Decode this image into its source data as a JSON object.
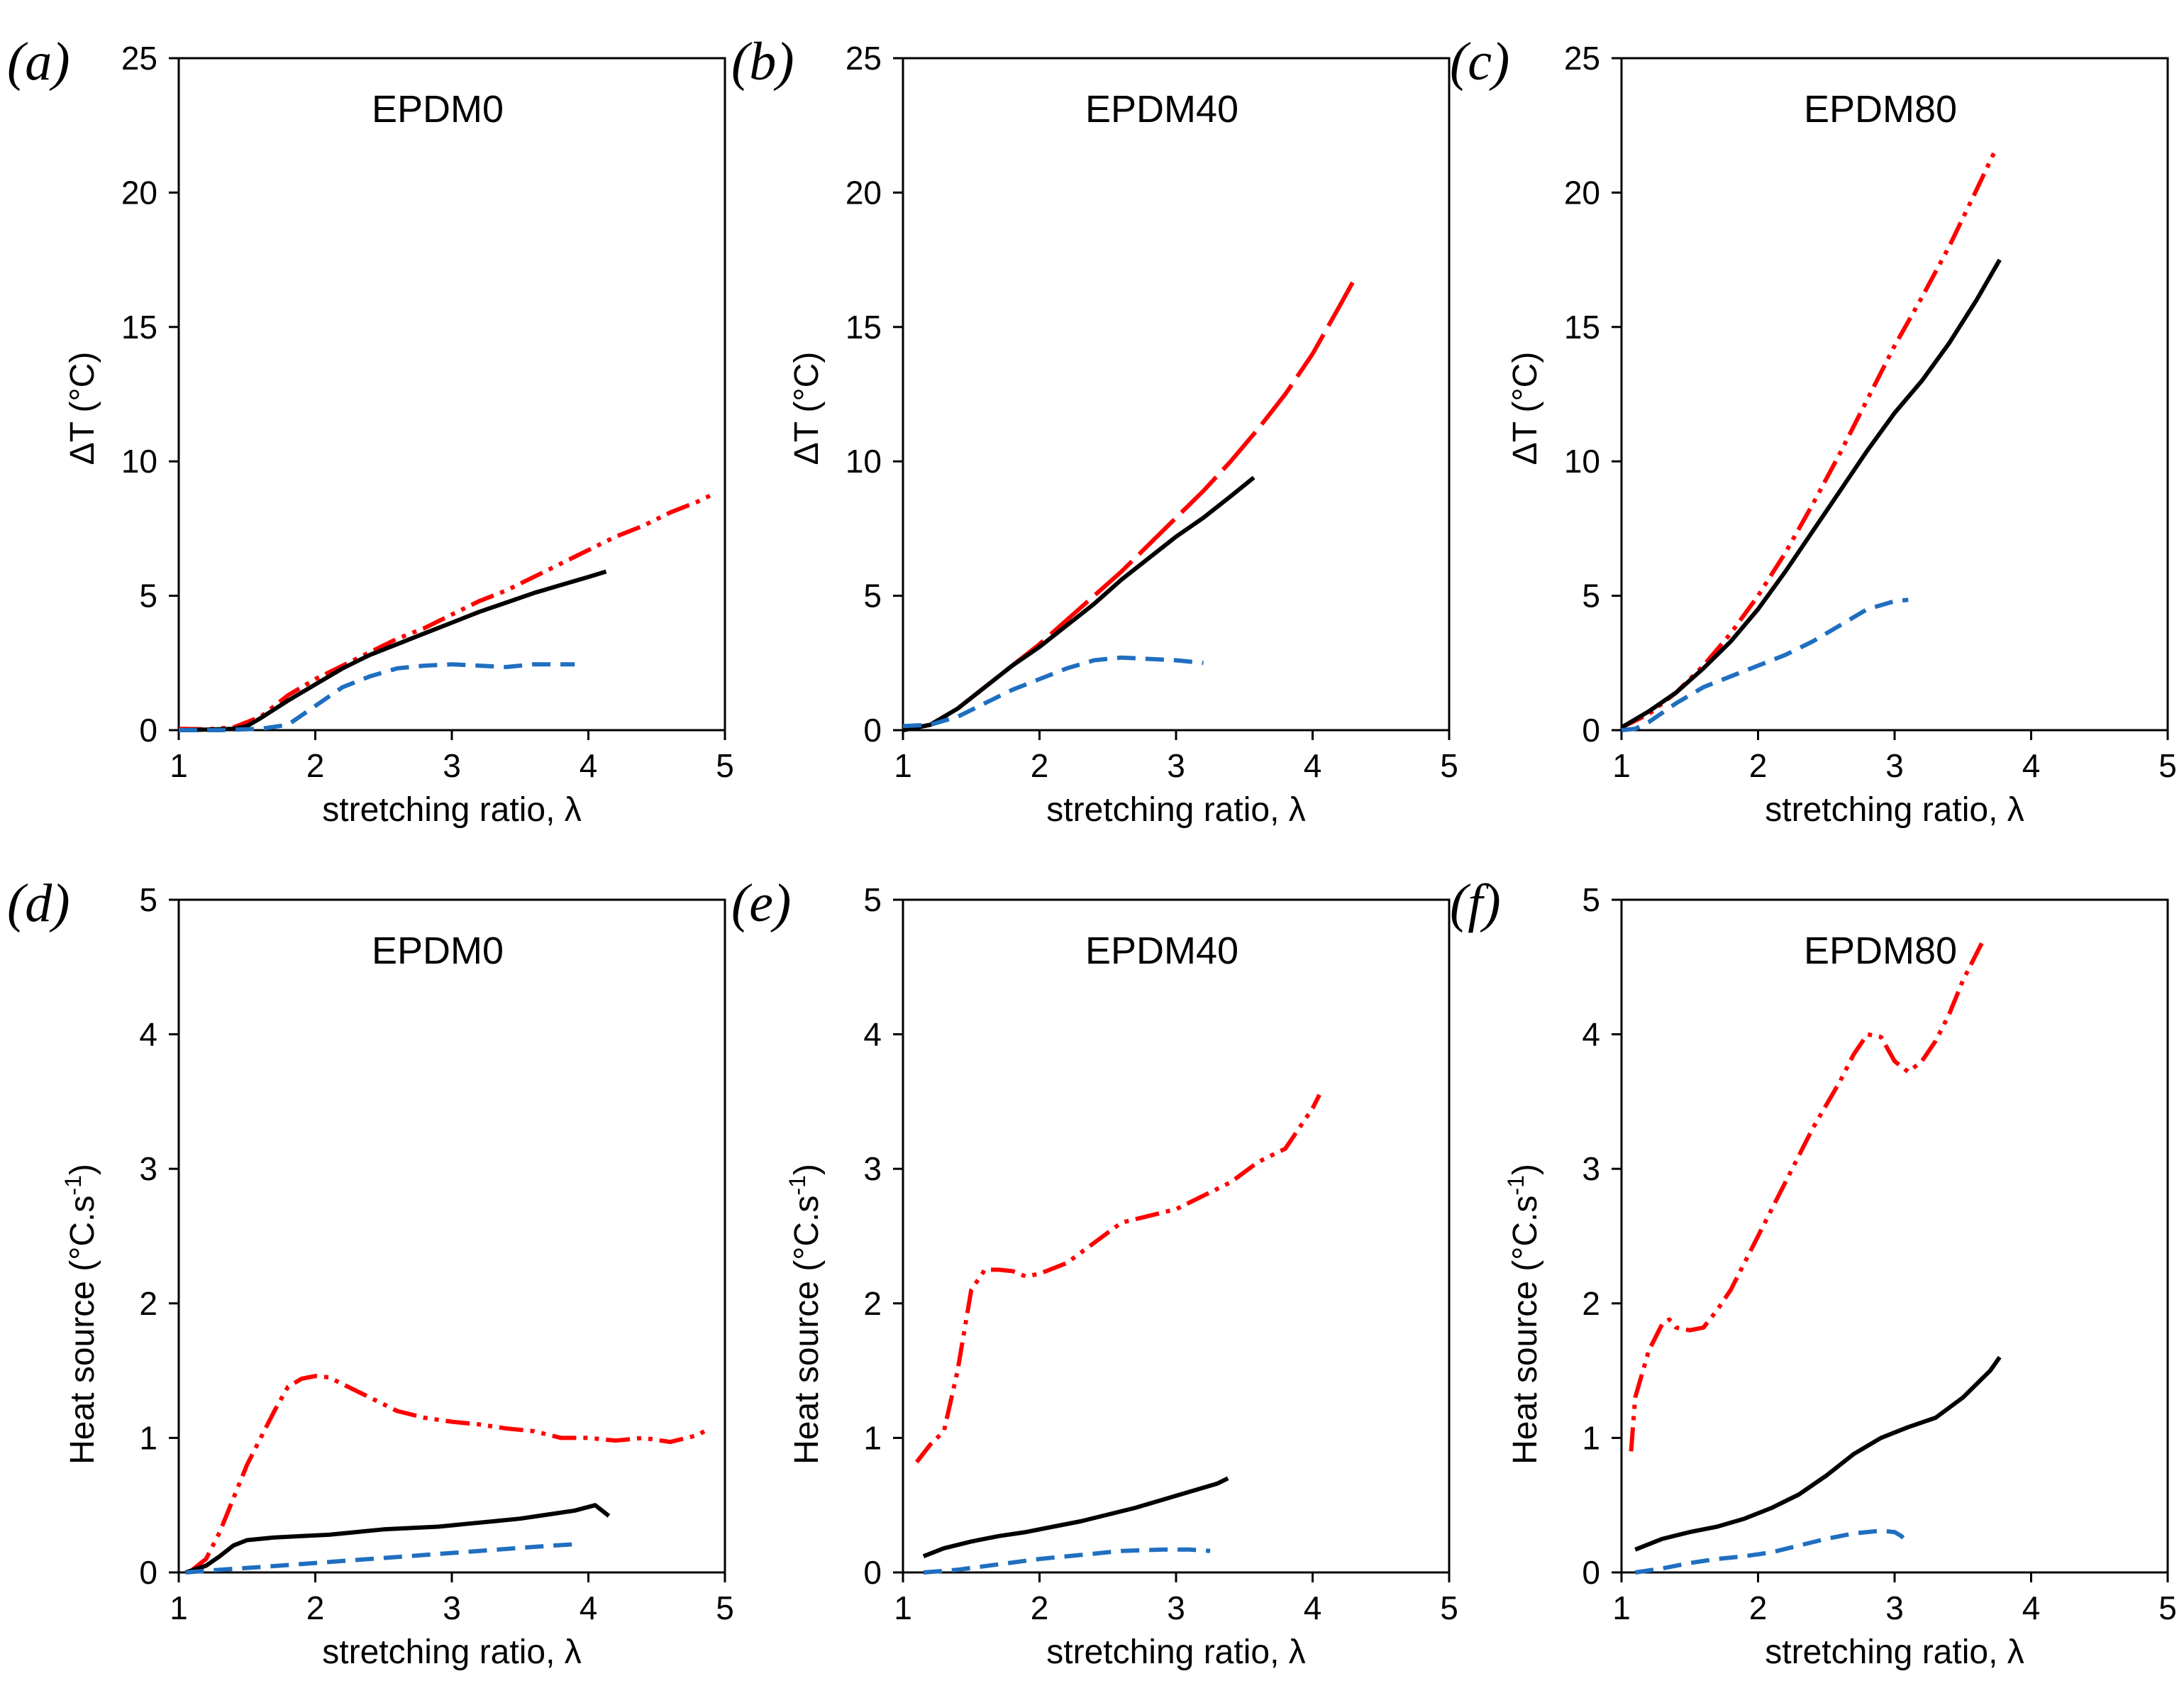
{
  "chart_data": [
    {
      "panel": "(a)",
      "type": "line",
      "title": "EPDM0",
      "xlabel": "stretching ratio, λ",
      "ylabel": "ΔT (°C)",
      "xlim": [
        1,
        5
      ],
      "ylim": [
        0,
        25
      ],
      "xticks": [
        "1",
        "2",
        "3",
        "4",
        "5"
      ],
      "yticks": [
        "0",
        "5",
        "10",
        "15",
        "20",
        "25"
      ],
      "series": [
        {
          "name": "red dash-dot-dot",
          "color": "#ff0000",
          "style": "dashdotdot",
          "x": [
            1.0,
            1.2,
            1.4,
            1.6,
            1.8,
            2.0,
            2.2,
            2.4,
            2.6,
            2.8,
            3.0,
            3.2,
            3.4,
            3.6,
            3.8,
            4.0,
            4.2,
            4.4,
            4.6,
            4.8,
            4.92
          ],
          "y": [
            0.05,
            0.03,
            0.1,
            0.5,
            1.3,
            1.9,
            2.4,
            2.9,
            3.4,
            3.8,
            4.3,
            4.8,
            5.2,
            5.7,
            6.2,
            6.7,
            7.2,
            7.6,
            8.1,
            8.5,
            8.8
          ]
        },
        {
          "name": "black solid",
          "color": "#000000",
          "style": "solid",
          "x": [
            1.0,
            1.2,
            1.4,
            1.5,
            1.6,
            1.8,
            2.0,
            2.2,
            2.4,
            2.6,
            2.8,
            3.0,
            3.2,
            3.4,
            3.6,
            3.8,
            4.0,
            4.13
          ],
          "y": [
            0.0,
            0.02,
            0.05,
            0.15,
            0.45,
            1.1,
            1.7,
            2.3,
            2.8,
            3.2,
            3.6,
            4.0,
            4.4,
            4.75,
            5.1,
            5.4,
            5.7,
            5.9
          ]
        },
        {
          "name": "blue dashed",
          "color": "#1f6fc0",
          "style": "dashed",
          "x": [
            1.0,
            1.3,
            1.6,
            1.8,
            2.0,
            2.2,
            2.4,
            2.6,
            2.8,
            3.0,
            3.2,
            3.4,
            3.6,
            3.8,
            3.9
          ],
          "y": [
            0.0,
            0.0,
            0.05,
            0.2,
            0.9,
            1.6,
            2.0,
            2.3,
            2.4,
            2.45,
            2.4,
            2.35,
            2.45,
            2.45,
            2.45
          ]
        }
      ]
    },
    {
      "panel": "(b)",
      "type": "line",
      "title": "EPDM40",
      "xlabel": "stretching ratio, λ",
      "ylabel": "ΔT (°C)",
      "xlim": [
        1,
        5
      ],
      "ylim": [
        0,
        25
      ],
      "xticks": [
        "1",
        "2",
        "3",
        "4",
        "5"
      ],
      "yticks": [
        "0",
        "5",
        "10",
        "15",
        "20",
        "25"
      ],
      "series": [
        {
          "name": "red long dash",
          "color": "#ff0000",
          "style": "longdash",
          "x": [
            1.0,
            1.2,
            1.4,
            1.6,
            1.8,
            2.0,
            2.2,
            2.4,
            2.6,
            2.8,
            3.0,
            3.2,
            3.4,
            3.6,
            3.8,
            4.0,
            4.2,
            4.32
          ],
          "y": [
            0.0,
            0.2,
            0.8,
            1.6,
            2.4,
            3.2,
            4.1,
            5.0,
            5.9,
            6.9,
            7.9,
            8.9,
            10.0,
            11.2,
            12.5,
            14.0,
            15.8,
            16.9
          ]
        },
        {
          "name": "black solid",
          "color": "#000000",
          "style": "solid",
          "x": [
            1.0,
            1.2,
            1.4,
            1.6,
            1.8,
            2.0,
            2.2,
            2.4,
            2.6,
            2.8,
            3.0,
            3.2,
            3.4,
            3.57
          ],
          "y": [
            0.0,
            0.2,
            0.8,
            1.6,
            2.4,
            3.1,
            3.9,
            4.7,
            5.6,
            6.4,
            7.2,
            7.9,
            8.7,
            9.4
          ]
        },
        {
          "name": "blue dashed",
          "color": "#1f6fc0",
          "style": "dashed",
          "x": [
            1.0,
            1.2,
            1.4,
            1.6,
            1.8,
            2.0,
            2.2,
            2.4,
            2.6,
            2.8,
            3.0,
            3.2
          ],
          "y": [
            0.15,
            0.2,
            0.5,
            1.0,
            1.5,
            1.9,
            2.3,
            2.6,
            2.7,
            2.65,
            2.6,
            2.5
          ]
        }
      ]
    },
    {
      "panel": "(c)",
      "type": "line",
      "title": "EPDM80",
      "xlabel": "stretching ratio, λ",
      "ylabel": "ΔT (°C)",
      "xlim": [
        1,
        5
      ],
      "ylim": [
        0,
        25
      ],
      "xticks": [
        "1",
        "2",
        "3",
        "4",
        "5"
      ],
      "yticks": [
        "0",
        "5",
        "10",
        "15",
        "20",
        "25"
      ],
      "series": [
        {
          "name": "red dash-dot-dot",
          "color": "#ff0000",
          "style": "dashdotdot",
          "x": [
            1.0,
            1.2,
            1.4,
            1.6,
            1.8,
            2.0,
            2.2,
            2.4,
            2.6,
            2.8,
            3.0,
            3.2,
            3.4,
            3.6,
            3.73
          ],
          "y": [
            0.1,
            0.6,
            1.4,
            2.4,
            3.6,
            5.0,
            6.6,
            8.4,
            10.3,
            12.3,
            14.3,
            16.1,
            18.0,
            20.1,
            21.5
          ]
        },
        {
          "name": "black solid",
          "color": "#000000",
          "style": "solid",
          "x": [
            1.0,
            1.2,
            1.4,
            1.6,
            1.8,
            2.0,
            2.2,
            2.4,
            2.6,
            2.8,
            3.0,
            3.2,
            3.4,
            3.6,
            3.77
          ],
          "y": [
            0.1,
            0.7,
            1.4,
            2.3,
            3.3,
            4.5,
            5.9,
            7.4,
            8.9,
            10.4,
            11.8,
            13.0,
            14.4,
            16.0,
            17.5
          ]
        },
        {
          "name": "blue dashed",
          "color": "#1f6fc0",
          "style": "dashed",
          "x": [
            1.0,
            1.1,
            1.2,
            1.4,
            1.6,
            1.8,
            2.0,
            2.2,
            2.4,
            2.6,
            2.8,
            3.0,
            3.1
          ],
          "y": [
            0.0,
            0.05,
            0.3,
            1.0,
            1.6,
            2.0,
            2.4,
            2.8,
            3.3,
            3.9,
            4.5,
            4.8,
            4.85
          ]
        }
      ]
    },
    {
      "panel": "(d)",
      "type": "line",
      "title": "EPDM0",
      "xlabel": "stretching ratio, λ",
      "ylabel": "Heat source (°C.s",
      "ylabel_sup": "-1",
      "ylabel_end": ")",
      "xlim": [
        1,
        5
      ],
      "ylim": [
        0,
        5
      ],
      "xticks": [
        "1",
        "2",
        "3",
        "4",
        "5"
      ],
      "yticks": [
        "0",
        "1",
        "2",
        "3",
        "4",
        "5"
      ],
      "series": [
        {
          "name": "red dash-dot-dot",
          "color": "#ff0000",
          "style": "dashdotdot",
          "x": [
            1.1,
            1.2,
            1.3,
            1.4,
            1.5,
            1.6,
            1.7,
            1.8,
            1.9,
            2.0,
            2.1,
            2.2,
            2.4,
            2.6,
            2.8,
            3.0,
            3.2,
            3.4,
            3.6,
            3.8,
            4.0,
            4.2,
            4.4,
            4.6,
            4.8,
            4.85
          ],
          "y": [
            0.02,
            0.1,
            0.3,
            0.55,
            0.8,
            1.0,
            1.2,
            1.38,
            1.44,
            1.46,
            1.45,
            1.4,
            1.3,
            1.2,
            1.15,
            1.12,
            1.1,
            1.07,
            1.05,
            1.0,
            1.0,
            0.98,
            1.0,
            0.97,
            1.02,
            1.05
          ]
        },
        {
          "name": "black solid",
          "color": "#000000",
          "style": "solid",
          "x": [
            1.05,
            1.2,
            1.3,
            1.4,
            1.5,
            1.7,
            1.9,
            2.1,
            2.3,
            2.5,
            2.7,
            2.9,
            3.1,
            3.3,
            3.5,
            3.7,
            3.9,
            4.05,
            4.15
          ],
          "y": [
            0.0,
            0.05,
            0.12,
            0.2,
            0.24,
            0.26,
            0.27,
            0.28,
            0.3,
            0.32,
            0.33,
            0.34,
            0.36,
            0.38,
            0.4,
            0.43,
            0.46,
            0.5,
            0.42
          ]
        },
        {
          "name": "blue dashed",
          "color": "#1f6fc0",
          "style": "dashed",
          "x": [
            1.05,
            1.3,
            1.6,
            2.0,
            2.4,
            2.8,
            3.2,
            3.6,
            3.9
          ],
          "y": [
            0.0,
            0.02,
            0.04,
            0.07,
            0.1,
            0.13,
            0.16,
            0.19,
            0.21
          ]
        }
      ]
    },
    {
      "panel": "(e)",
      "type": "line",
      "title": "EPDM40",
      "xlabel": "stretching ratio, λ",
      "ylabel": "Heat source (°C.s",
      "ylabel_sup": "-1",
      "ylabel_end": ")",
      "xlim": [
        1,
        5
      ],
      "ylim": [
        0,
        5
      ],
      "xticks": [
        "1",
        "2",
        "3",
        "4",
        "5"
      ],
      "yticks": [
        "0",
        "1",
        "2",
        "3",
        "4",
        "5"
      ],
      "series": [
        {
          "name": "red dash-dot-dot",
          "color": "#ff0000",
          "style": "dashdotdot",
          "x": [
            1.1,
            1.2,
            1.3,
            1.4,
            1.5,
            1.6,
            1.7,
            1.8,
            1.9,
            2.0,
            2.2,
            2.4,
            2.6,
            2.8,
            3.0,
            3.2,
            3.4,
            3.6,
            3.8,
            4.0,
            4.05
          ],
          "y": [
            0.82,
            0.95,
            1.05,
            1.5,
            2.1,
            2.25,
            2.25,
            2.24,
            2.2,
            2.22,
            2.3,
            2.45,
            2.6,
            2.65,
            2.7,
            2.8,
            2.9,
            3.05,
            3.15,
            3.45,
            3.55
          ]
        },
        {
          "name": "black solid",
          "color": "#000000",
          "style": "solid",
          "x": [
            1.15,
            1.3,
            1.5,
            1.7,
            1.9,
            2.1,
            2.3,
            2.5,
            2.7,
            2.9,
            3.1,
            3.3,
            3.38
          ],
          "y": [
            0.12,
            0.18,
            0.23,
            0.27,
            0.3,
            0.34,
            0.38,
            0.43,
            0.48,
            0.54,
            0.6,
            0.66,
            0.7
          ]
        },
        {
          "name": "blue dashed",
          "color": "#1f6fc0",
          "style": "dashed",
          "x": [
            1.15,
            1.4,
            1.7,
            2.0,
            2.3,
            2.6,
            2.9,
            3.1,
            3.25
          ],
          "y": [
            0.0,
            0.02,
            0.06,
            0.1,
            0.13,
            0.16,
            0.17,
            0.17,
            0.16
          ]
        }
      ]
    },
    {
      "panel": "(f)",
      "type": "line",
      "title": "EPDM80",
      "xlabel": "stretching ratio, λ",
      "ylabel": "Heat source (°C.s",
      "ylabel_sup": "-1",
      "ylabel_end": ")",
      "xlim": [
        1,
        5
      ],
      "ylim": [
        0,
        5
      ],
      "xticks": [
        "1",
        "2",
        "3",
        "4",
        "5"
      ],
      "yticks": [
        "0",
        "1",
        "2",
        "3",
        "4",
        "5"
      ],
      "series": [
        {
          "name": "red dash-dot-dot",
          "color": "#ff0000",
          "style": "dashdotdot",
          "x": [
            1.07,
            1.1,
            1.2,
            1.3,
            1.35,
            1.4,
            1.5,
            1.6,
            1.7,
            1.8,
            1.9,
            2.0,
            2.2,
            2.4,
            2.6,
            2.7,
            2.8,
            2.9,
            3.0,
            3.1,
            3.2,
            3.3,
            3.4,
            3.5,
            3.6,
            3.65
          ],
          "y": [
            0.9,
            1.3,
            1.65,
            1.85,
            1.88,
            1.82,
            1.8,
            1.82,
            1.95,
            2.1,
            2.3,
            2.5,
            2.9,
            3.3,
            3.65,
            3.85,
            4.0,
            3.98,
            3.8,
            3.72,
            3.8,
            3.95,
            4.15,
            4.4,
            4.6,
            4.7
          ]
        },
        {
          "name": "black solid",
          "color": "#000000",
          "style": "solid",
          "x": [
            1.1,
            1.3,
            1.5,
            1.7,
            1.9,
            2.1,
            2.3,
            2.5,
            2.7,
            2.9,
            3.1,
            3.3,
            3.5,
            3.7,
            3.77
          ],
          "y": [
            0.17,
            0.25,
            0.3,
            0.34,
            0.4,
            0.48,
            0.58,
            0.72,
            0.88,
            1.0,
            1.08,
            1.15,
            1.3,
            1.5,
            1.6
          ]
        },
        {
          "name": "blue dashed",
          "color": "#1f6fc0",
          "style": "dashed",
          "x": [
            1.1,
            1.3,
            1.5,
            1.7,
            1.9,
            2.1,
            2.3,
            2.5,
            2.7,
            2.9,
            3.0,
            3.05,
            3.1
          ],
          "y": [
            0.0,
            0.03,
            0.07,
            0.1,
            0.12,
            0.15,
            0.2,
            0.25,
            0.29,
            0.31,
            0.3,
            0.27,
            0.22
          ]
        }
      ]
    }
  ]
}
